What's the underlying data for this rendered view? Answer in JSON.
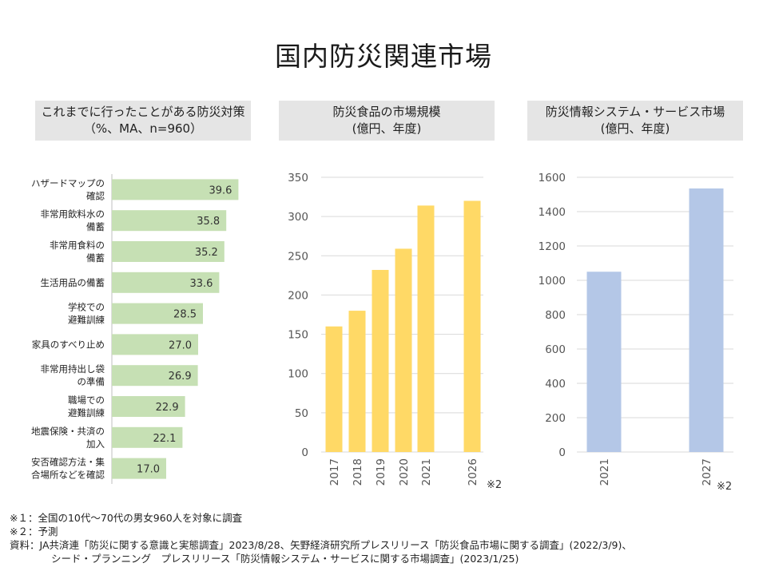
{
  "title": "国内防災関連市場",
  "chart_data": [
    {
      "type": "bar",
      "orientation": "horizontal",
      "title_line1": "これまでに行ったことがある防災対策",
      "title_line2": "（%、MA、n=960）",
      "categories": [
        [
          "ハザードマップの",
          "確認"
        ],
        [
          "非常用飲料水の",
          "備蓄"
        ],
        [
          "非常用食料の",
          "備蓄"
        ],
        [
          "生活用品の備蓄"
        ],
        [
          "学校での",
          "避難訓練"
        ],
        [
          "家具のすべり止め"
        ],
        [
          "非常用持出し袋",
          "の準備"
        ],
        [
          "職場での",
          "避難訓練"
        ],
        [
          "地震保険・共済の",
          "加入"
        ],
        [
          "安否確認方法・集",
          "合場所などを確認"
        ]
      ],
      "values": [
        39.6,
        35.8,
        35.2,
        33.6,
        28.5,
        27.0,
        26.9,
        22.9,
        22.1,
        17.0
      ],
      "value_labels": [
        "39.6",
        "35.8",
        "35.2",
        "33.6",
        "28.5",
        "27.0",
        "26.9",
        "22.9",
        "22.1",
        "17.0"
      ],
      "xlim": [
        0,
        44
      ],
      "color": "#c6e0b4"
    },
    {
      "type": "bar",
      "title_line1": "防災食品の市場規模",
      "title_line2": "(億円、年度)",
      "categories": [
        "2017",
        "2018",
        "2019",
        "2020",
        "2021",
        "2026"
      ],
      "values": [
        160,
        180,
        232,
        259,
        314,
        320
      ],
      "ylim": [
        0,
        350
      ],
      "yticks": [
        "0",
        "50",
        "100",
        "150",
        "200",
        "250",
        "300",
        "350"
      ],
      "color": "#ffd966",
      "note_mark": "※2"
    },
    {
      "type": "bar",
      "title_line1": "防災情報システム・サービス市場",
      "title_line2": "(億円、年度)",
      "categories": [
        "2021",
        "2027"
      ],
      "values": [
        1050,
        1535
      ],
      "ylim": [
        0,
        1600
      ],
      "yticks": [
        "0",
        "200",
        "400",
        "600",
        "800",
        "1000",
        "1200",
        "1400",
        "1600"
      ],
      "color": "#b4c7e7",
      "note_mark": "※2"
    }
  ],
  "notes": {
    "note1": "※１：全国の10代～70代の男女960人を対象に調査",
    "note2": "※２：予測",
    "source1": "資料：JA共済連「防災に関する意識と実態調査」2023/8/28、矢野経済研究所プレスリリース「防災食品市場に関する調査」(2022/3/9)、",
    "source2": "シード・プランニング　プレスリリース「防災情報システム・サービスに関する市場調査」(2023/1/25)"
  }
}
